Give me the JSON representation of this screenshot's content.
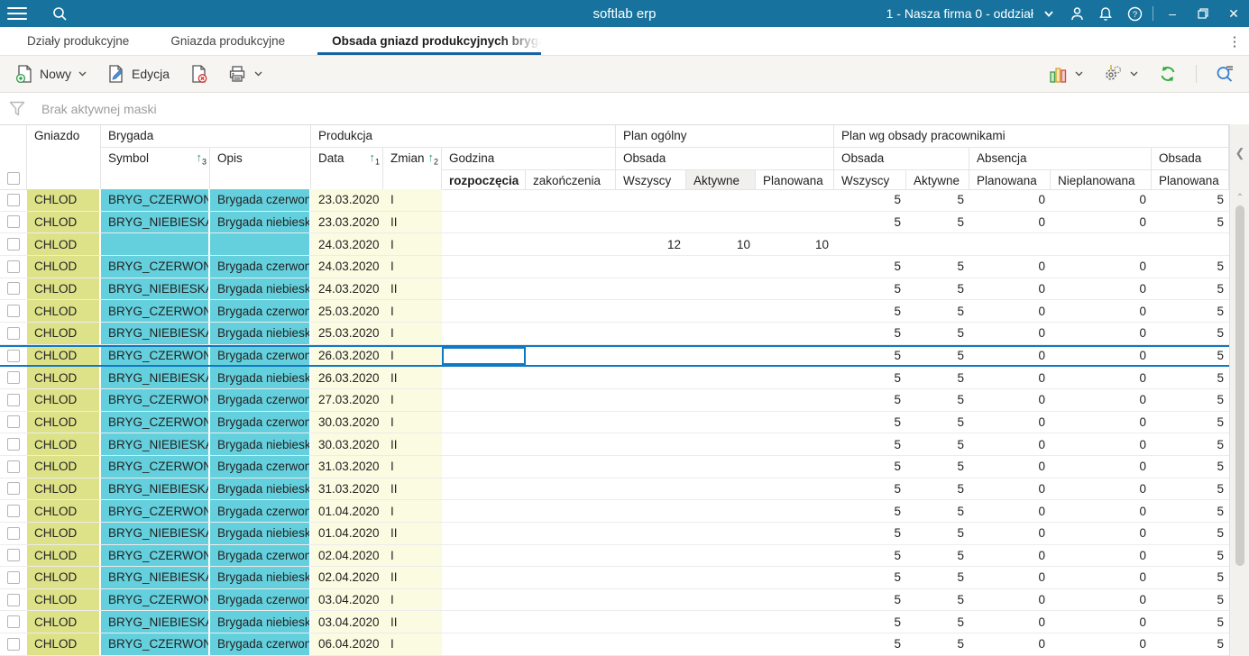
{
  "titlebar": {
    "title": "softlab erp",
    "company_selector": "1 - Nasza firma 0 - oddział",
    "minimize": "–",
    "close": "✕"
  },
  "tabs": [
    {
      "label": "Działy produkcyjne",
      "active": false
    },
    {
      "label": "Gniazda produkcyjne",
      "active": false
    },
    {
      "label": "Obsada gniazd produkcyjnych brygadami",
      "active": true
    }
  ],
  "toolbar": {
    "new_label": "Nowy",
    "edit_label": "Edycja",
    "icons": [
      "new-document-icon",
      "edit-icon",
      "delete-document-icon",
      "print-icon",
      "bar-chart-icon",
      "operations-gear-icon",
      "refresh-icon",
      "advanced-search-icon"
    ]
  },
  "filter": {
    "text": "Brak aktywnej maski"
  },
  "table": {
    "header": {
      "gniazdo": "Gniazdo",
      "brygada": "Brygada",
      "symbol": "Symbol",
      "opis": "Opis",
      "produkcja": "Produkcja",
      "data": "Data",
      "zmiana": "Zmiana",
      "godzina": "Godzina",
      "rozpoczecia": "rozpoczęcia",
      "zakonczenia": "zakończenia",
      "plan_ogolny": "Plan ogólny",
      "plan_wg": "Plan wg obsady pracownikami",
      "obsada": "Obsada",
      "absencja": "Absencja",
      "wszyscy": "Wszyscy",
      "aktywne": "Aktywne",
      "planowana": "Planowana",
      "nieplanowana": "Nieplanowana",
      "sort_data_order": "1",
      "sort_zmiana_order": "2",
      "sort_symbol_order": "3"
    },
    "selected_row_index": 7,
    "focused_cell_column": "rozpoczecia",
    "colors": {
      "gniazdo_cell": "#dde289",
      "brygada_cell": "#64d0dd",
      "produkcja_cell": "#fafbe1",
      "selection": "#0e79c5",
      "topbar": "#17739d",
      "active_tab_underline": "#16639f"
    },
    "rows": [
      {
        "gniazdo": "CHLOD",
        "symbol": "BRYG_CZERWONA",
        "opis": "Brygada czerwona",
        "data": "23.03.2020",
        "zmiana": "I",
        "rozpoczecia": "",
        "zakonczenia": "",
        "po_wszyscy": "",
        "po_aktywne": "",
        "po_planowana": "",
        "pw_wszyscy": "5",
        "pw_aktywne": "5",
        "ab_planowana": "0",
        "ab_nieplanowana": "0",
        "ob_planowana": "5"
      },
      {
        "gniazdo": "CHLOD",
        "symbol": "BRYG_NIEBIESKA",
        "opis": "Brygada niebieska",
        "data": "23.03.2020",
        "zmiana": "II",
        "rozpoczecia": "",
        "zakonczenia": "",
        "po_wszyscy": "",
        "po_aktywne": "",
        "po_planowana": "",
        "pw_wszyscy": "5",
        "pw_aktywne": "5",
        "ab_planowana": "0",
        "ab_nieplanowana": "0",
        "ob_planowana": "5"
      },
      {
        "gniazdo": "CHLOD",
        "symbol": "",
        "opis": "",
        "data": "24.03.2020",
        "zmiana": "I",
        "rozpoczecia": "",
        "zakonczenia": "",
        "po_wszyscy": "12",
        "po_aktywne": "10",
        "po_planowana": "10",
        "pw_wszyscy": "",
        "pw_aktywne": "",
        "ab_planowana": "",
        "ab_nieplanowana": "",
        "ob_planowana": ""
      },
      {
        "gniazdo": "CHLOD",
        "symbol": "BRYG_CZERWONA",
        "opis": "Brygada czerwona",
        "data": "24.03.2020",
        "zmiana": "I",
        "rozpoczecia": "",
        "zakonczenia": "",
        "po_wszyscy": "",
        "po_aktywne": "",
        "po_planowana": "",
        "pw_wszyscy": "5",
        "pw_aktywne": "5",
        "ab_planowana": "0",
        "ab_nieplanowana": "0",
        "ob_planowana": "5"
      },
      {
        "gniazdo": "CHLOD",
        "symbol": "BRYG_NIEBIESKA",
        "opis": "Brygada niebieska",
        "data": "24.03.2020",
        "zmiana": "II",
        "rozpoczecia": "",
        "zakonczenia": "",
        "po_wszyscy": "",
        "po_aktywne": "",
        "po_planowana": "",
        "pw_wszyscy": "5",
        "pw_aktywne": "5",
        "ab_planowana": "0",
        "ab_nieplanowana": "0",
        "ob_planowana": "5"
      },
      {
        "gniazdo": "CHLOD",
        "symbol": "BRYG_CZERWONA",
        "opis": "Brygada czerwona",
        "data": "25.03.2020",
        "zmiana": "I",
        "rozpoczecia": "",
        "zakonczenia": "",
        "po_wszyscy": "",
        "po_aktywne": "",
        "po_planowana": "",
        "pw_wszyscy": "5",
        "pw_aktywne": "5",
        "ab_planowana": "0",
        "ab_nieplanowana": "0",
        "ob_planowana": "5"
      },
      {
        "gniazdo": "CHLOD",
        "symbol": "BRYG_NIEBIESKA",
        "opis": "Brygada niebieska",
        "data": "25.03.2020",
        "zmiana": "I",
        "rozpoczecia": "",
        "zakonczenia": "",
        "po_wszyscy": "",
        "po_aktywne": "",
        "po_planowana": "",
        "pw_wszyscy": "5",
        "pw_aktywne": "5",
        "ab_planowana": "0",
        "ab_nieplanowana": "0",
        "ob_planowana": "5"
      },
      {
        "gniazdo": "CHLOD",
        "symbol": "BRYG_CZERWONA",
        "opis": "Brygada czerwona",
        "data": "26.03.2020",
        "zmiana": "I",
        "rozpoczecia": "",
        "zakonczenia": "",
        "po_wszyscy": "",
        "po_aktywne": "",
        "po_planowana": "",
        "pw_wszyscy": "5",
        "pw_aktywne": "5",
        "ab_planowana": "0",
        "ab_nieplanowana": "0",
        "ob_planowana": "5"
      },
      {
        "gniazdo": "CHLOD",
        "symbol": "BRYG_NIEBIESKA",
        "opis": "Brygada niebieska",
        "data": "26.03.2020",
        "zmiana": "II",
        "rozpoczecia": "",
        "zakonczenia": "",
        "po_wszyscy": "",
        "po_aktywne": "",
        "po_planowana": "",
        "pw_wszyscy": "5",
        "pw_aktywne": "5",
        "ab_planowana": "0",
        "ab_nieplanowana": "0",
        "ob_planowana": "5"
      },
      {
        "gniazdo": "CHLOD",
        "symbol": "BRYG_CZERWONA",
        "opis": "Brygada czerwona",
        "data": "27.03.2020",
        "zmiana": "I",
        "rozpoczecia": "",
        "zakonczenia": "",
        "po_wszyscy": "",
        "po_aktywne": "",
        "po_planowana": "",
        "pw_wszyscy": "5",
        "pw_aktywne": "5",
        "ab_planowana": "0",
        "ab_nieplanowana": "0",
        "ob_planowana": "5"
      },
      {
        "gniazdo": "CHLOD",
        "symbol": "BRYG_CZERWONA",
        "opis": "Brygada czerwona",
        "data": "30.03.2020",
        "zmiana": "I",
        "rozpoczecia": "",
        "zakonczenia": "",
        "po_wszyscy": "",
        "po_aktywne": "",
        "po_planowana": "",
        "pw_wszyscy": "5",
        "pw_aktywne": "5",
        "ab_planowana": "0",
        "ab_nieplanowana": "0",
        "ob_planowana": "5"
      },
      {
        "gniazdo": "CHLOD",
        "symbol": "BRYG_NIEBIESKA",
        "opis": "Brygada niebieska",
        "data": "30.03.2020",
        "zmiana": "II",
        "rozpoczecia": "",
        "zakonczenia": "",
        "po_wszyscy": "",
        "po_aktywne": "",
        "po_planowana": "",
        "pw_wszyscy": "5",
        "pw_aktywne": "5",
        "ab_planowana": "0",
        "ab_nieplanowana": "0",
        "ob_planowana": "5"
      },
      {
        "gniazdo": "CHLOD",
        "symbol": "BRYG_CZERWONA",
        "opis": "Brygada czerwona",
        "data": "31.03.2020",
        "zmiana": "I",
        "rozpoczecia": "",
        "zakonczenia": "",
        "po_wszyscy": "",
        "po_aktywne": "",
        "po_planowana": "",
        "pw_wszyscy": "5",
        "pw_aktywne": "5",
        "ab_planowana": "0",
        "ab_nieplanowana": "0",
        "ob_planowana": "5"
      },
      {
        "gniazdo": "CHLOD",
        "symbol": "BRYG_NIEBIESKA",
        "opis": "Brygada niebieska",
        "data": "31.03.2020",
        "zmiana": "II",
        "rozpoczecia": "",
        "zakonczenia": "",
        "po_wszyscy": "",
        "po_aktywne": "",
        "po_planowana": "",
        "pw_wszyscy": "5",
        "pw_aktywne": "5",
        "ab_planowana": "0",
        "ab_nieplanowana": "0",
        "ob_planowana": "5"
      },
      {
        "gniazdo": "CHLOD",
        "symbol": "BRYG_CZERWONA",
        "opis": "Brygada czerwona",
        "data": "01.04.2020",
        "zmiana": "I",
        "rozpoczecia": "",
        "zakonczenia": "",
        "po_wszyscy": "",
        "po_aktywne": "",
        "po_planowana": "",
        "pw_wszyscy": "5",
        "pw_aktywne": "5",
        "ab_planowana": "0",
        "ab_nieplanowana": "0",
        "ob_planowana": "5"
      },
      {
        "gniazdo": "CHLOD",
        "symbol": "BRYG_NIEBIESKA",
        "opis": "Brygada niebieska",
        "data": "01.04.2020",
        "zmiana": "II",
        "rozpoczecia": "",
        "zakonczenia": "",
        "po_wszyscy": "",
        "po_aktywne": "",
        "po_planowana": "",
        "pw_wszyscy": "5",
        "pw_aktywne": "5",
        "ab_planowana": "0",
        "ab_nieplanowana": "0",
        "ob_planowana": "5"
      },
      {
        "gniazdo": "CHLOD",
        "symbol": "BRYG_CZERWONA",
        "opis": "Brygada czerwona",
        "data": "02.04.2020",
        "zmiana": "I",
        "rozpoczecia": "",
        "zakonczenia": "",
        "po_wszyscy": "",
        "po_aktywne": "",
        "po_planowana": "",
        "pw_wszyscy": "5",
        "pw_aktywne": "5",
        "ab_planowana": "0",
        "ab_nieplanowana": "0",
        "ob_planowana": "5"
      },
      {
        "gniazdo": "CHLOD",
        "symbol": "BRYG_NIEBIESKA",
        "opis": "Brygada niebieska",
        "data": "02.04.2020",
        "zmiana": "II",
        "rozpoczecia": "",
        "zakonczenia": "",
        "po_wszyscy": "",
        "po_aktywne": "",
        "po_planowana": "",
        "pw_wszyscy": "5",
        "pw_aktywne": "5",
        "ab_planowana": "0",
        "ab_nieplanowana": "0",
        "ob_planowana": "5"
      },
      {
        "gniazdo": "CHLOD",
        "symbol": "BRYG_CZERWONA",
        "opis": "Brygada czerwona",
        "data": "03.04.2020",
        "zmiana": "I",
        "rozpoczecia": "",
        "zakonczenia": "",
        "po_wszyscy": "",
        "po_aktywne": "",
        "po_planowana": "",
        "pw_wszyscy": "5",
        "pw_aktywne": "5",
        "ab_planowana": "0",
        "ab_nieplanowana": "0",
        "ob_planowana": "5"
      },
      {
        "gniazdo": "CHLOD",
        "symbol": "BRYG_NIEBIESKA",
        "opis": "Brygada niebieska",
        "data": "03.04.2020",
        "zmiana": "II",
        "rozpoczecia": "",
        "zakonczenia": "",
        "po_wszyscy": "",
        "po_aktywne": "",
        "po_planowana": "",
        "pw_wszyscy": "5",
        "pw_aktywne": "5",
        "ab_planowana": "0",
        "ab_nieplanowana": "0",
        "ob_planowana": "5"
      },
      {
        "gniazdo": "CHLOD",
        "symbol": "BRYG_CZERWONA",
        "opis": "Brygada czerwona",
        "data": "06.04.2020",
        "zmiana": "I",
        "rozpoczecia": "",
        "zakonczenia": "",
        "po_wszyscy": "",
        "po_aktywne": "",
        "po_planowana": "",
        "pw_wszyscy": "5",
        "pw_aktywne": "5",
        "ab_planowana": "0",
        "ab_nieplanowana": "0",
        "ob_planowana": "5"
      }
    ]
  }
}
